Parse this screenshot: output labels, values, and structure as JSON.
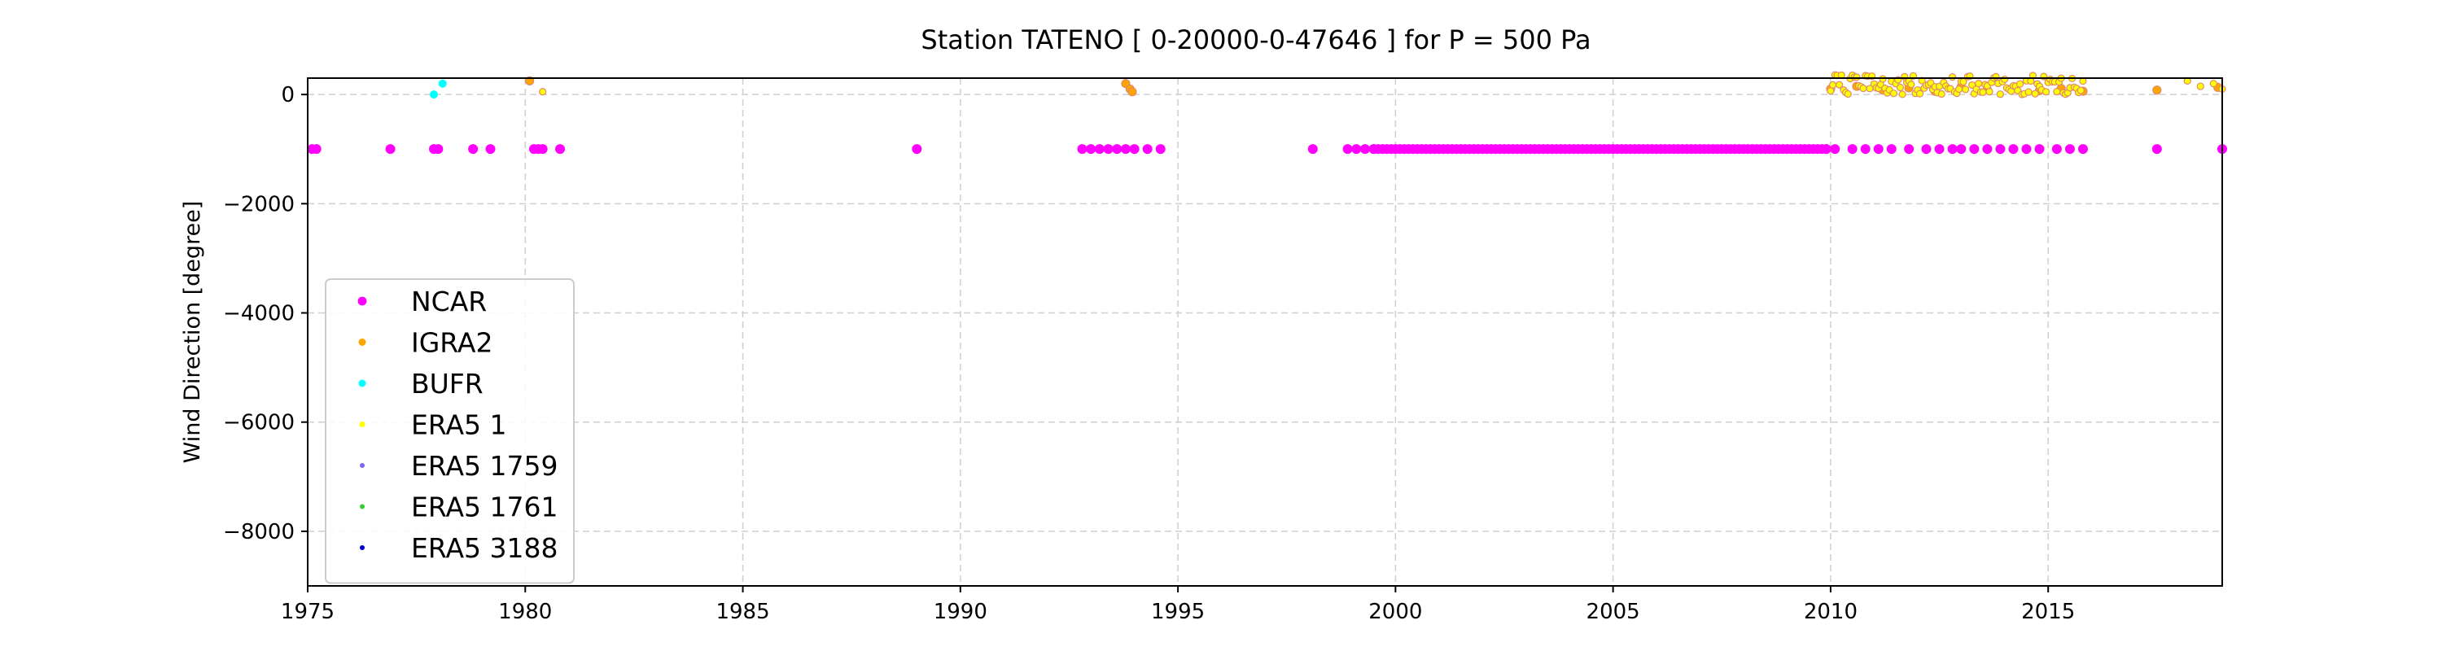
{
  "chart_data": {
    "type": "scatter",
    "title": "Station  TATENO [ 0-20000-0-47646 ]  for P = 500 Pa",
    "xlabel": "",
    "ylabel": "Wind Direction [degree]",
    "xlim": [
      1975,
      2019
    ],
    "ylim": [
      -9000,
      300
    ],
    "x_ticks": [
      1975,
      1980,
      1985,
      1990,
      1995,
      2000,
      2005,
      2010,
      2015
    ],
    "y_ticks": [
      0,
      -2000,
      -4000,
      -6000,
      -8000
    ],
    "x_tick_labels": [
      "1975",
      "1980",
      "1985",
      "1990",
      "1995",
      "2000",
      "2005",
      "2010",
      "2015"
    ],
    "y_tick_labels": [
      "0",
      "−2000",
      "−4000",
      "−6000",
      "−8000"
    ],
    "grid": true,
    "legend_position": "lower-left",
    "series": [
      {
        "name": "NCAR",
        "color": "#ff00ff",
        "marker_size": 6,
        "points": [
          [
            1975.1,
            -999
          ],
          [
            1975.2,
            -999
          ],
          [
            1976.9,
            -999
          ],
          [
            1977.9,
            -999
          ],
          [
            1978.0,
            -999
          ],
          [
            1978.8,
            -999
          ],
          [
            1979.2,
            -999
          ],
          [
            1980.2,
            -999
          ],
          [
            1980.3,
            -999
          ],
          [
            1980.4,
            -999
          ],
          [
            1980.8,
            -999
          ],
          [
            1989.0,
            -999
          ],
          [
            1992.8,
            -999
          ],
          [
            1993.0,
            -999
          ],
          [
            1993.2,
            -999
          ],
          [
            1993.4,
            -999
          ],
          [
            1993.6,
            -999
          ],
          [
            1993.8,
            -999
          ],
          [
            1994.0,
            -999
          ],
          [
            1994.3,
            -999
          ],
          [
            1994.6,
            -999
          ],
          [
            1998.1,
            -999
          ],
          [
            1998.9,
            -999
          ],
          [
            1999.1,
            -999
          ],
          [
            1999.3,
            -999
          ],
          [
            1999.5,
            -999
          ],
          [
            2009.9,
            -999
          ],
          [
            2010.1,
            -999
          ],
          [
            2010.5,
            -999
          ],
          [
            2010.8,
            -999
          ],
          [
            2011.1,
            -999
          ],
          [
            2011.4,
            -999
          ],
          [
            2011.8,
            -999
          ],
          [
            2012.2,
            -999
          ],
          [
            2012.5,
            -999
          ],
          [
            2012.8,
            -999
          ],
          [
            2013.0,
            -999
          ],
          [
            2013.3,
            -999
          ],
          [
            2013.6,
            -999
          ],
          [
            2013.9,
            -999
          ],
          [
            2014.2,
            -999
          ],
          [
            2014.5,
            -999
          ],
          [
            2014.8,
            -999
          ],
          [
            2015.2,
            -999
          ],
          [
            2015.5,
            -999
          ],
          [
            2015.8,
            -999
          ],
          [
            2017.5,
            -999
          ],
          [
            2019.0,
            -999
          ]
        ],
        "ranges": [
          {
            "x_start": 1999.5,
            "x_end": 2009.9,
            "step": 0.1,
            "y": -999
          }
        ]
      },
      {
        "name": "IGRA2",
        "color": "#ffa500",
        "marker_size": 5,
        "points": [
          [
            1980.1,
            250
          ],
          [
            1993.8,
            200
          ],
          [
            1993.9,
            100
          ],
          [
            1993.95,
            50
          ],
          [
            2010.0,
            100
          ],
          [
            2010.6,
            150
          ],
          [
            2011.2,
            80
          ],
          [
            2011.8,
            120
          ],
          [
            2012.4,
            60
          ],
          [
            2013.0,
            140
          ],
          [
            2013.6,
            90
          ],
          [
            2014.2,
            120
          ],
          [
            2014.8,
            70
          ],
          [
            2015.3,
            110
          ],
          [
            2015.8,
            60
          ],
          [
            2017.5,
            80
          ],
          [
            2018.9,
            130
          ]
        ]
      },
      {
        "name": "BUFR",
        "color": "#00ffff",
        "marker_size": 5,
        "points": [
          [
            1977.9,
            0
          ],
          [
            1978.1,
            200
          ]
        ]
      },
      {
        "name": "ERA5 1",
        "color": "#ffff00",
        "marker_size": 4,
        "points": [
          [
            1980.4,
            50
          ],
          [
            2018.2,
            250
          ],
          [
            2018.5,
            150
          ],
          [
            2018.8,
            200
          ],
          [
            2019.0,
            100
          ]
        ],
        "ranges": [
          {
            "x_start": 2010.0,
            "x_end": 2015.8,
            "step": 0.05,
            "y_min": 0,
            "y_max": 360
          }
        ]
      },
      {
        "name": "ERA5 1759",
        "color": "#7b68ee",
        "marker_size": 3,
        "points": []
      },
      {
        "name": "ERA5 1761",
        "color": "#32cd32",
        "marker_size": 3,
        "points": []
      },
      {
        "name": "ERA5 3188",
        "color": "#0000cd",
        "marker_size": 3,
        "points": []
      }
    ]
  }
}
